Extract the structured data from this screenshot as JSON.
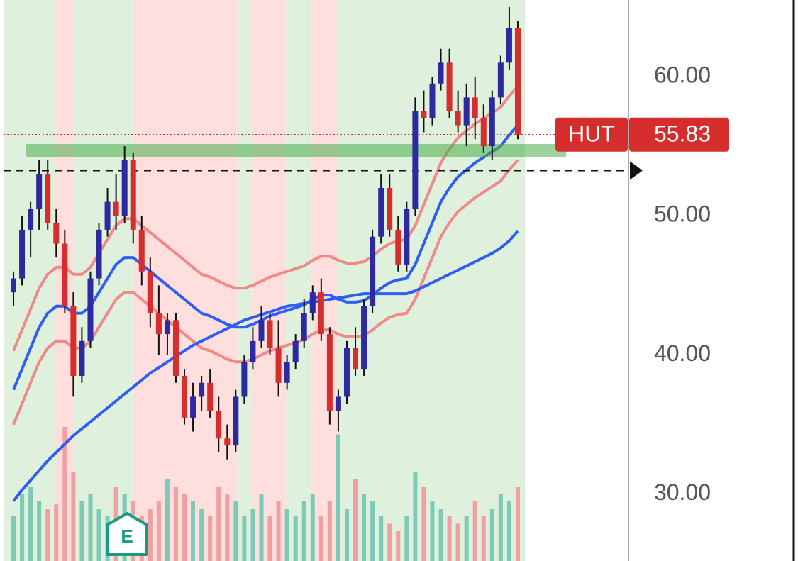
{
  "chart_data": {
    "type": "candlestick",
    "ticker": "HUT",
    "last_price": 55.83,
    "up_color": "#2d2aa0",
    "down_color": "#d62d2d",
    "ylim": [
      25.2,
      65.5
    ],
    "yticks": [
      {
        "value": 30,
        "label": "30.00"
      },
      {
        "value": 40,
        "label": "40.00"
      },
      {
        "value": 50,
        "label": "50.00"
      },
      {
        "value": 60,
        "label": "60.00"
      }
    ],
    "dashed_level": 53.25,
    "zone_level": 54.7,
    "zone_color": "#4caf50",
    "earnings_badge": "E",
    "candles": [
      {
        "o": 44.5,
        "h": 46,
        "l": 43.5,
        "c": 45.5
      },
      {
        "o": 45.5,
        "h": 50,
        "l": 45,
        "c": 49
      },
      {
        "o": 49,
        "h": 51,
        "l": 47,
        "c": 50.5
      },
      {
        "o": 50.5,
        "h": 54,
        "l": 49,
        "c": 53
      },
      {
        "o": 53,
        "h": 54,
        "l": 49,
        "c": 49.5
      },
      {
        "o": 49.5,
        "h": 50.5,
        "l": 47,
        "c": 48
      },
      {
        "o": 48,
        "h": 49,
        "l": 43,
        "c": 43.5
      },
      {
        "o": 43.5,
        "h": 44.5,
        "l": 37,
        "c": 38.5
      },
      {
        "o": 38.5,
        "h": 42,
        "l": 38,
        "c": 41
      },
      {
        "o": 41,
        "h": 46,
        "l": 40.5,
        "c": 45.5
      },
      {
        "o": 45.5,
        "h": 49.5,
        "l": 45,
        "c": 49
      },
      {
        "o": 49,
        "h": 52,
        "l": 48.5,
        "c": 51
      },
      {
        "o": 51,
        "h": 53,
        "l": 49,
        "c": 50
      },
      {
        "o": 50,
        "h": 55,
        "l": 49.5,
        "c": 54
      },
      {
        "o": 54,
        "h": 54.5,
        "l": 48,
        "c": 49
      },
      {
        "o": 49,
        "h": 50,
        "l": 45,
        "c": 46
      },
      {
        "o": 46,
        "h": 47,
        "l": 42,
        "c": 43
      },
      {
        "o": 43,
        "h": 45,
        "l": 40,
        "c": 41.5
      },
      {
        "o": 41.5,
        "h": 43,
        "l": 40,
        "c": 42.5
      },
      {
        "o": 42.5,
        "h": 43,
        "l": 38,
        "c": 38.5
      },
      {
        "o": 38.5,
        "h": 39,
        "l": 35,
        "c": 35.5
      },
      {
        "o": 35.5,
        "h": 38,
        "l": 34.5,
        "c": 37
      },
      {
        "o": 37,
        "h": 38.5,
        "l": 36,
        "c": 38
      },
      {
        "o": 38,
        "h": 39,
        "l": 35.5,
        "c": 36
      },
      {
        "o": 36,
        "h": 37,
        "l": 33,
        "c": 34
      },
      {
        "o": 34,
        "h": 35,
        "l": 32.5,
        "c": 33.5
      },
      {
        "o": 33.5,
        "h": 37.5,
        "l": 33,
        "c": 37
      },
      {
        "o": 37,
        "h": 40,
        "l": 36.5,
        "c": 39.5
      },
      {
        "o": 39.5,
        "h": 42,
        "l": 39,
        "c": 41
      },
      {
        "o": 41,
        "h": 43.5,
        "l": 40.5,
        "c": 42.5
      },
      {
        "o": 42.5,
        "h": 43,
        "l": 40,
        "c": 40.5
      },
      {
        "o": 40.5,
        "h": 42.5,
        "l": 37,
        "c": 38
      },
      {
        "o": 38,
        "h": 40,
        "l": 37.5,
        "c": 39.5
      },
      {
        "o": 39.5,
        "h": 41.5,
        "l": 39,
        "c": 41
      },
      {
        "o": 41,
        "h": 44,
        "l": 40.5,
        "c": 43
      },
      {
        "o": 43,
        "h": 45,
        "l": 42.5,
        "c": 44.5
      },
      {
        "o": 44.5,
        "h": 45.5,
        "l": 41,
        "c": 41.5
      },
      {
        "o": 41.5,
        "h": 42,
        "l": 35,
        "c": 36
      },
      {
        "o": 36,
        "h": 37.5,
        "l": 34.5,
        "c": 37
      },
      {
        "o": 37,
        "h": 41,
        "l": 36.5,
        "c": 40.5
      },
      {
        "o": 40.5,
        "h": 42,
        "l": 38.5,
        "c": 39
      },
      {
        "o": 39,
        "h": 44,
        "l": 38.5,
        "c": 43.5
      },
      {
        "o": 43.5,
        "h": 49,
        "l": 43,
        "c": 48.5
      },
      {
        "o": 48.5,
        "h": 53,
        "l": 48,
        "c": 52
      },
      {
        "o": 52,
        "h": 53,
        "l": 48.5,
        "c": 49
      },
      {
        "o": 49,
        "h": 50,
        "l": 46,
        "c": 46.5
      },
      {
        "o": 46.5,
        "h": 51,
        "l": 46,
        "c": 50.5
      },
      {
        "o": 50.5,
        "h": 58.5,
        "l": 50,
        "c": 57.5
      },
      {
        "o": 57.5,
        "h": 59,
        "l": 56,
        "c": 57
      },
      {
        "o": 57,
        "h": 60,
        "l": 56.5,
        "c": 59.5
      },
      {
        "o": 59.5,
        "h": 62,
        "l": 59,
        "c": 61
      },
      {
        "o": 61,
        "h": 62,
        "l": 57,
        "c": 57.5
      },
      {
        "o": 57.5,
        "h": 59,
        "l": 56,
        "c": 56.5
      },
      {
        "o": 56.5,
        "h": 59.5,
        "l": 55,
        "c": 58.5
      },
      {
        "o": 58.5,
        "h": 60,
        "l": 55.5,
        "c": 57
      },
      {
        "o": 57,
        "h": 58,
        "l": 54.5,
        "c": 55
      },
      {
        "o": 55,
        "h": 59,
        "l": 54,
        "c": 58.5
      },
      {
        "o": 58.5,
        "h": 61.5,
        "l": 58,
        "c": 61
      },
      {
        "o": 61,
        "h": 65,
        "l": 60.5,
        "c": 63.5
      },
      {
        "o": 63.5,
        "h": 64,
        "l": 55.5,
        "c": 55.83
      }
    ],
    "series": [
      {
        "color": "#f08080",
        "values": [
          40.3,
          41.8,
          43.3,
          44.8,
          45.8,
          46.3,
          46.3,
          45.8,
          45.8,
          46.3,
          47.3,
          48.3,
          49.3,
          49.8,
          49.8,
          49.3,
          48.8,
          48.3,
          47.8,
          47.3,
          46.8,
          46.3,
          45.8,
          45.6,
          45.3,
          45,
          44.8,
          44.8,
          45,
          45.3,
          45.6,
          45.8,
          46,
          46.2,
          46.4,
          46.8,
          47.1,
          47.1,
          46.8,
          46.6,
          46.6,
          46.7,
          47.1,
          47.6,
          48,
          48.2,
          48.3,
          49.3,
          50.8,
          52.3,
          53.8,
          54.8,
          55.6,
          56.1,
          56.6,
          57,
          57.4,
          57.8,
          58.6,
          59.3
        ]
      },
      {
        "color": "#f08080",
        "values": [
          35,
          36.5,
          38,
          39.5,
          40.5,
          41,
          41,
          40.5,
          40.5,
          41,
          42,
          43,
          44,
          44.5,
          44.5,
          44,
          43.5,
          43,
          42.5,
          42,
          41.5,
          41,
          40.5,
          40.3,
          40,
          39.7,
          39.5,
          39.5,
          39.7,
          40,
          40.3,
          40.5,
          40.7,
          40.9,
          41.1,
          41.5,
          41.8,
          41.8,
          41.5,
          41.3,
          41.3,
          41.4,
          41.8,
          42.3,
          42.7,
          42.9,
          43,
          44,
          45.5,
          47,
          48.5,
          49.5,
          50.3,
          50.8,
          51.3,
          51.7,
          52.1,
          52.5,
          53.3,
          54
        ]
      },
      {
        "color": "#2f5ff0",
        "values": [
          37.5,
          39,
          40.5,
          42,
          43,
          43.5,
          43.5,
          43,
          43,
          43.5,
          44.5,
          45.5,
          46.5,
          47,
          47,
          46.5,
          46,
          45.5,
          45,
          44.5,
          44,
          43.5,
          43,
          42.8,
          42.5,
          42.2,
          42,
          42,
          42.2,
          42.5,
          42.8,
          43,
          43.2,
          43.4,
          43.6,
          44,
          44.3,
          44.3,
          44,
          43.8,
          43.8,
          43.9,
          44.3,
          44.8,
          45.2,
          45.4,
          45.5,
          46.5,
          48,
          49.5,
          51,
          52,
          52.8,
          53.3,
          53.8,
          54.2,
          54.6,
          55,
          55.8,
          56.5
        ]
      },
      {
        "color": "#2f5ff0",
        "values": [
          29.5,
          30.3,
          31,
          31.7,
          32.4,
          33,
          33.6,
          34.2,
          34.7,
          35.2,
          35.7,
          36.2,
          36.7,
          37.2,
          37.7,
          38.2,
          38.7,
          39.1,
          39.5,
          39.9,
          40.3,
          40.7,
          41,
          41.3,
          41.6,
          41.9,
          42.2,
          42.5,
          42.7,
          42.9,
          43.1,
          43.3,
          43.5,
          43.6,
          43.7,
          43.8,
          43.9,
          44,
          44.1,
          44.2,
          44.3,
          44.4,
          44.4,
          44.4,
          44.4,
          44.4,
          44.4,
          44.6,
          44.9,
          45.2,
          45.5,
          45.8,
          46.1,
          46.4,
          46.7,
          47,
          47.3,
          47.7,
          48.2,
          48.9
        ]
      }
    ],
    "volume_ylim": [
      0,
      100
    ],
    "volume": [
      30,
      45,
      50,
      40,
      35,
      38,
      90,
      60,
      40,
      45,
      35,
      30,
      50,
      45,
      40,
      30,
      35,
      40,
      55,
      50,
      45,
      40,
      35,
      30,
      50,
      45,
      40,
      30,
      35,
      45,
      30,
      40,
      35,
      30,
      40,
      45,
      30,
      40,
      85,
      35,
      55,
      45,
      40,
      30,
      25,
      20,
      30,
      60,
      50,
      40,
      35,
      30,
      25,
      30,
      40,
      30,
      35,
      45,
      40,
      50
    ],
    "shading": [
      {
        "start": 0,
        "end": 6,
        "color": "#dff0dc"
      },
      {
        "start": 6,
        "end": 8,
        "color": "#ffdede"
      },
      {
        "start": 8,
        "end": 15,
        "color": "#dff0dc"
      },
      {
        "start": 15,
        "end": 27,
        "color": "#ffdede"
      },
      {
        "start": 27,
        "end": 28.5,
        "color": "#dff0dc"
      },
      {
        "start": 28.5,
        "end": 32.5,
        "color": "#ffdede"
      },
      {
        "start": 32.5,
        "end": 35.5,
        "color": "#dff0dc"
      },
      {
        "start": 35.5,
        "end": 38.5,
        "color": "#ffdede"
      },
      {
        "start": 38.5,
        "end": 60,
        "color": "#dff0dc"
      }
    ]
  }
}
